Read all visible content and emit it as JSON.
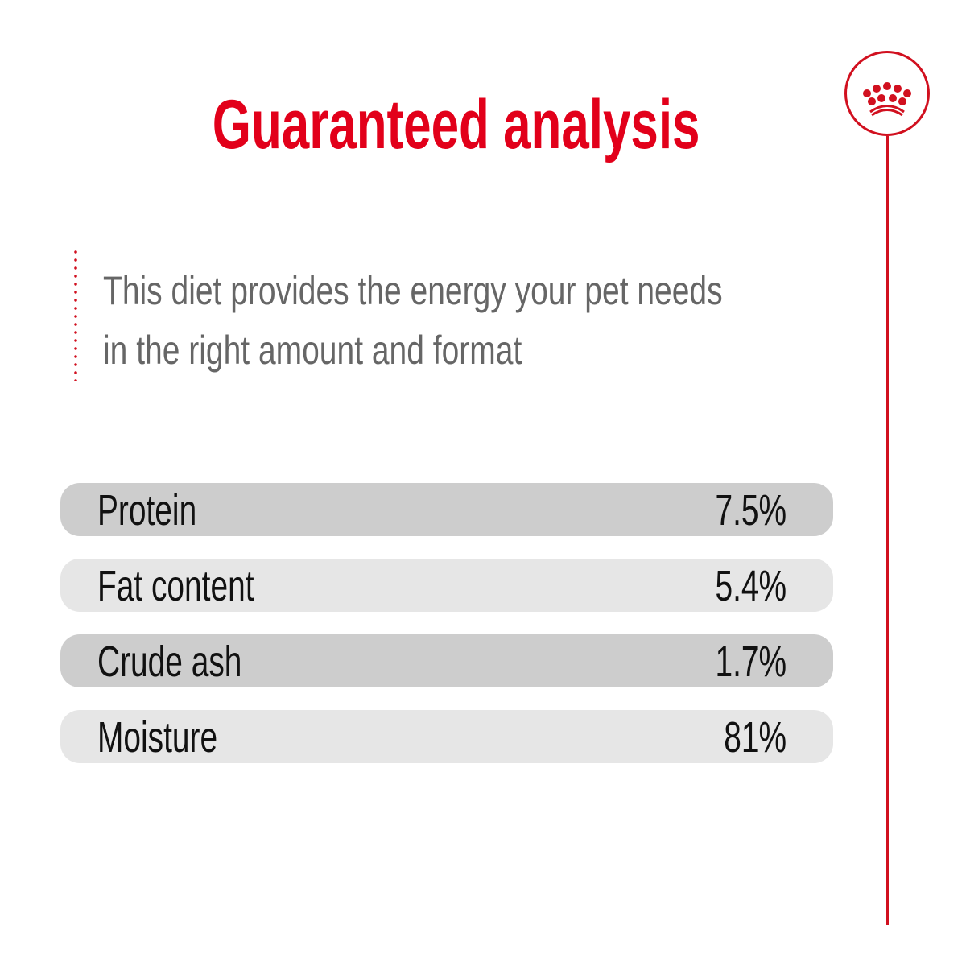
{
  "title": "Guaranteed analysis",
  "description": [
    "This diet provides the energy your pet needs",
    "in the right amount and format"
  ],
  "logo": {
    "icon": "crown-icon",
    "color": "#d1101f"
  },
  "rows": [
    {
      "label": "Protein",
      "value": "7.5%"
    },
    {
      "label": "Fat content",
      "value": "5.4%"
    },
    {
      "label": "Crude ash",
      "value": "1.7%"
    },
    {
      "label": "Moisture",
      "value": "81%"
    }
  ],
  "colors": {
    "accent": "#e2001a",
    "row_dark": "#cdcdcd",
    "row_light": "#e6e6e6",
    "text_gray": "#666666"
  }
}
